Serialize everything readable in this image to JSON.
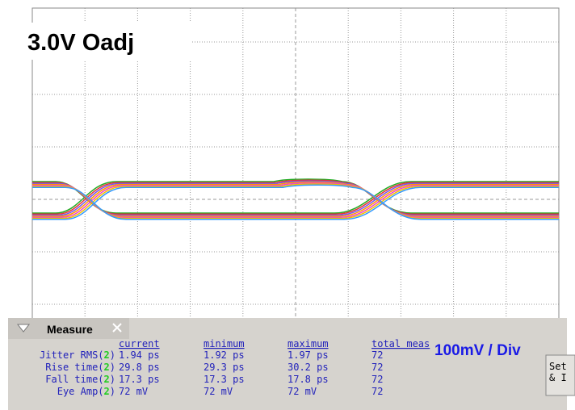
{
  "title": "3.0V Oadj",
  "scale_label": "100mV / Div",
  "measure": {
    "tab": "Measure",
    "headers": [
      "current",
      "minimum",
      "maximum",
      "total meas"
    ],
    "rows": [
      {
        "label": [
          "Jitter RMS(",
          "2",
          ")"
        ],
        "cells": [
          "1.94 ps",
          "1.92 ps",
          "1.97 ps",
          "72"
        ]
      },
      {
        "label": [
          "Rise time(",
          "2",
          ")"
        ],
        "cells": [
          "29.8 ps",
          "29.3 ps",
          "30.2 ps",
          "72"
        ]
      },
      {
        "label": [
          "Fall time(",
          "2",
          ")"
        ],
        "cells": [
          "17.3 ps",
          "17.3 ps",
          "17.8 ps",
          "72"
        ]
      },
      {
        "label": [
          "Eye Amp(",
          "2",
          ")"
        ],
        "cells": [
          "72 mV",
          "72 mV",
          "72 mV",
          "72"
        ]
      }
    ],
    "button": [
      "Set",
      "& I"
    ]
  }
}
